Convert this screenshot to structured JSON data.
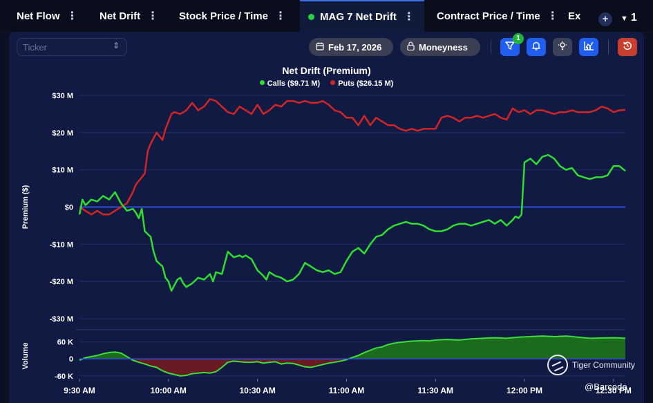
{
  "tabs": [
    {
      "label": "Net Flow",
      "active": false
    },
    {
      "label": "Net Drift",
      "active": false
    },
    {
      "label": "Stock Price / Time",
      "active": false
    },
    {
      "label": "MAG 7 Net Drift",
      "active": true
    },
    {
      "label": "Contract Price / Time",
      "active": false
    },
    {
      "label": "Ex",
      "active": false
    }
  ],
  "tab_add": "+",
  "tab_count": "1",
  "toolbar": {
    "ticker_placeholder": "Ticker",
    "date_label": "Feb 17, 2026",
    "moneyness_label": "Moneyness",
    "filter_badge": "1"
  },
  "colors": {
    "calls": "#2ee02e",
    "puts": "#d42424",
    "zero_line": "#2f4fd8",
    "volume_pos_fill": "#1c6a1c",
    "volume_neg_fill": "#6a1a22"
  },
  "icons": [
    "calendar-icon",
    "lock-icon",
    "filter-icon",
    "bell-icon",
    "lightbulb-icon",
    "chart-icon",
    "reset-icon"
  ],
  "chart_data": {
    "type": "line",
    "title": "Net Drift (Premium)",
    "legend": [
      {
        "name": "Calls ($9.71 M)",
        "color": "#2ee02e"
      },
      {
        "name": "Puts ($26.15 M)",
        "color": "#d42424"
      }
    ],
    "ylabel": "Premium ($)",
    "ylim": [
      -30,
      30
    ],
    "yticks": [
      "$30 M",
      "$20 M",
      "$10 M",
      "$0",
      "-$10 M",
      "-$20 M",
      "-$30 M"
    ],
    "ytick_values": [
      30,
      20,
      10,
      0,
      -10,
      -20,
      -30
    ],
    "xlabels": [
      "9:30 AM",
      "10:00 AM",
      "10:30 AM",
      "11:00 AM",
      "11:30 AM",
      "12:00 PM",
      "12:30 PM"
    ],
    "xlabel_minutes": [
      0,
      30,
      60,
      90,
      120,
      150,
      180
    ],
    "x_range_minutes": [
      0,
      184
    ],
    "series": [
      {
        "name": "Calls",
        "x": [
          0,
          1,
          2,
          4,
          6,
          8,
          10,
          12,
          14,
          16,
          18,
          19,
          20,
          21,
          22,
          24,
          25,
          26,
          28,
          29,
          30,
          31,
          32,
          33,
          34,
          35,
          36,
          38,
          40,
          42,
          44,
          45,
          46,
          48,
          49,
          50,
          52,
          54,
          55,
          56,
          58,
          60,
          62,
          63,
          64,
          66,
          68,
          70,
          72,
          74,
          76,
          78,
          80,
          82,
          84,
          86,
          88,
          90,
          92,
          94,
          96,
          98,
          100,
          102,
          104,
          106,
          108,
          110,
          112,
          114,
          116,
          118,
          120,
          122,
          124,
          126,
          128,
          130,
          132,
          134,
          136,
          138,
          140,
          142,
          144,
          146,
          147,
          148,
          149,
          150,
          152,
          154,
          156,
          158,
          160,
          162,
          164,
          166,
          168,
          170,
          172,
          174,
          176,
          178,
          180,
          182,
          184
        ],
        "y": [
          -2,
          2,
          0.5,
          2,
          1.5,
          3,
          2,
          4,
          1,
          -1,
          -0.5,
          -1.5,
          -3,
          -0.5,
          -6.5,
          -8,
          -12,
          -14.5,
          -16,
          -19,
          -20,
          -22.5,
          -21,
          -19.5,
          -19,
          -20.5,
          -21.5,
          -20.5,
          -19,
          -19.5,
          -18,
          -20,
          -17.5,
          -18,
          -15,
          -12,
          -13.5,
          -13,
          -13.5,
          -13,
          -14,
          -17,
          -18.5,
          -19.5,
          -17.5,
          -18.5,
          -19,
          -20,
          -19.5,
          -18,
          -15,
          -16,
          -17,
          -17.5,
          -17,
          -18,
          -17.5,
          -14.5,
          -12,
          -11,
          -12.5,
          -10,
          -8,
          -7.5,
          -6,
          -5,
          -4.5,
          -4,
          -4.5,
          -4.5,
          -5,
          -6,
          -6.5,
          -6.5,
          -6,
          -5,
          -4.5,
          -4.5,
          -5,
          -4.5,
          -4,
          -3.5,
          -4.5,
          -3.5,
          -5,
          -3.5,
          -2.5,
          -3,
          -2,
          12,
          13,
          11.5,
          13.5,
          14,
          13,
          11,
          10,
          10.5,
          8.5,
          8,
          7.5,
          8,
          8,
          8.5,
          11,
          11,
          9.7
        ]
      },
      {
        "name": "Puts",
        "x": [
          0,
          2,
          4,
          6,
          8,
          10,
          12,
          14,
          16,
          18,
          19,
          20,
          22,
          23,
          24,
          26,
          28,
          29,
          30,
          31,
          32,
          34,
          36,
          38,
          40,
          42,
          44,
          46,
          48,
          50,
          52,
          54,
          56,
          58,
          60,
          62,
          64,
          66,
          68,
          70,
          72,
          74,
          76,
          78,
          80,
          82,
          84,
          86,
          88,
          90,
          92,
          94,
          96,
          98,
          100,
          102,
          104,
          106,
          108,
          110,
          112,
          114,
          116,
          118,
          120,
          122,
          124,
          126,
          128,
          130,
          132,
          134,
          136,
          138,
          140,
          142,
          144,
          146,
          148,
          150,
          152,
          154,
          156,
          158,
          160,
          162,
          164,
          166,
          168,
          170,
          172,
          174,
          176,
          178,
          180,
          182,
          184
        ],
        "y": [
          0,
          -1,
          -2,
          -1,
          -2,
          -2,
          -1,
          0,
          1,
          4,
          6,
          7,
          9,
          15,
          17,
          20,
          18,
          21,
          23,
          25,
          25.5,
          25,
          26,
          28,
          26,
          27,
          29,
          28.5,
          27,
          25.5,
          25,
          27,
          26,
          25,
          27.5,
          25,
          26,
          27.5,
          27,
          28.5,
          28.5,
          28,
          28.5,
          28,
          28,
          28.5,
          27.5,
          26,
          25.5,
          24,
          24,
          22,
          24.5,
          22,
          24,
          23,
          22,
          22,
          21,
          20.5,
          21,
          20.5,
          21,
          21,
          21,
          24,
          24.5,
          24,
          23,
          24,
          24,
          24.5,
          24,
          24.5,
          25,
          24,
          23.5,
          26.5,
          25.5,
          26,
          25,
          26,
          26,
          25.5,
          25,
          25.5,
          25.5,
          26,
          25.5,
          25.5,
          25.5,
          26,
          27,
          26.5,
          25.5,
          26,
          26.15
        ]
      }
    ],
    "volume": {
      "ylabel": "Volume",
      "ylim": [
        -70,
        90
      ],
      "yticks": [
        "60 K",
        "0",
        "-60 K"
      ],
      "ytick_values": [
        60,
        0,
        -60
      ],
      "x": [
        0,
        2,
        4,
        6,
        8,
        10,
        12,
        14,
        16,
        18,
        20,
        22,
        24,
        26,
        28,
        30,
        32,
        34,
        36,
        38,
        40,
        42,
        44,
        46,
        48,
        50,
        52,
        54,
        56,
        58,
        60,
        62,
        64,
        66,
        68,
        70,
        72,
        74,
        76,
        78,
        80,
        82,
        84,
        86,
        88,
        90,
        92,
        94,
        96,
        98,
        100,
        102,
        104,
        106,
        108,
        110,
        112,
        114,
        116,
        118,
        120,
        124,
        128,
        132,
        136,
        140,
        144,
        148,
        152,
        156,
        160,
        164,
        168,
        172,
        176,
        180,
        184
      ],
      "values": [
        -5,
        4,
        8,
        12,
        18,
        22,
        24,
        20,
        8,
        -5,
        -12,
        -18,
        -25,
        -30,
        -42,
        -50,
        -55,
        -60,
        -58,
        -52,
        -50,
        -48,
        -50,
        -45,
        -30,
        -12,
        -8,
        -10,
        -12,
        -12,
        -10,
        -15,
        -12,
        -10,
        -18,
        -15,
        -16,
        -22,
        -28,
        -30,
        -25,
        -20,
        -15,
        -12,
        -8,
        -3,
        5,
        12,
        22,
        30,
        38,
        42,
        50,
        55,
        58,
        60,
        62,
        63,
        64,
        63,
        66,
        68,
        66,
        70,
        72,
        74,
        72,
        76,
        78,
        80,
        78,
        80,
        76,
        72,
        73,
        74,
        72
      ]
    }
  },
  "watermark": "Tiger Community",
  "signature": "@Barcode"
}
